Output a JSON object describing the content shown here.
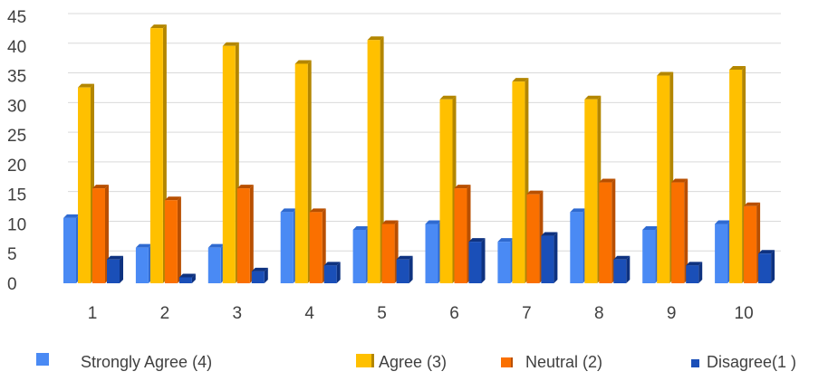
{
  "chart_data": {
    "type": "bar",
    "title": "",
    "xlabel": "",
    "ylabel": "",
    "categories": [
      "1",
      "2",
      "3",
      "4",
      "5",
      "6",
      "7",
      "8",
      "9",
      "10"
    ],
    "ylim": [
      0,
      45
    ],
    "yticks": [
      "0",
      "5",
      "10",
      "15",
      "20",
      "25",
      "30",
      "35",
      "40",
      "45"
    ],
    "grid": true,
    "legend_position": "bottom",
    "series": [
      {
        "name": "Strongly Agree (4)",
        "color": "#4a8af4",
        "dark": "#2f6ad0",
        "values": [
          11,
          6,
          6,
          12,
          9,
          10,
          7,
          12,
          9,
          10
        ]
      },
      {
        "name": "Agree (3)",
        "color": "#ffc000",
        "dark": "#b38600",
        "values": [
          33,
          43,
          40,
          37,
          41,
          31,
          34,
          31,
          35,
          36
        ]
      },
      {
        "name": "Neutral (2)",
        "color": "#fa7000",
        "dark": "#b84f00",
        "values": [
          16,
          14,
          16,
          12,
          10,
          16,
          15,
          17,
          17,
          13
        ]
      },
      {
        "name": "Disagree(1 )",
        "color": "#1a4fb8",
        "dark": "#0e3280",
        "values": [
          4,
          1,
          2,
          3,
          4,
          7,
          8,
          4,
          3,
          5
        ]
      }
    ]
  }
}
